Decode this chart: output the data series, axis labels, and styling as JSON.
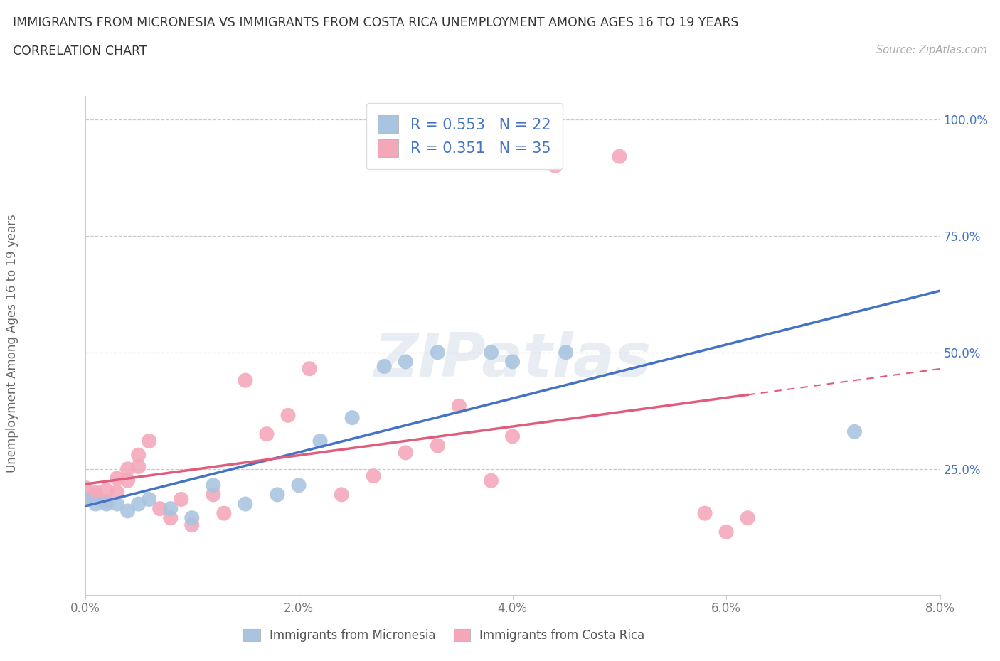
{
  "title_line1": "IMMIGRANTS FROM MICRONESIA VS IMMIGRANTS FROM COSTA RICA UNEMPLOYMENT AMONG AGES 16 TO 19 YEARS",
  "title_line2": "CORRELATION CHART",
  "source_text": "Source: ZipAtlas.com",
  "ylabel": "Unemployment Among Ages 16 to 19 years",
  "xlim": [
    0.0,
    0.08
  ],
  "ylim": [
    0.0,
    1.05
  ],
  "xtick_labels": [
    "0.0%",
    "2.0%",
    "4.0%",
    "6.0%",
    "8.0%"
  ],
  "xtick_values": [
    0.0,
    0.02,
    0.04,
    0.06,
    0.08
  ],
  "ytick_labels": [
    "25.0%",
    "50.0%",
    "75.0%",
    "100.0%"
  ],
  "ytick_values": [
    0.25,
    0.5,
    0.75,
    1.0
  ],
  "micronesia_color": "#a8c4e0",
  "costa_rica_color": "#f4a7b9",
  "micronesia_line_color": "#4472c4",
  "costa_rica_line_color": "#e05c7a",
  "R_micronesia": 0.553,
  "N_micronesia": 22,
  "R_costa_rica": 0.351,
  "N_costa_rica": 35,
  "micronesia_x": [
    0.0,
    0.001,
    0.002,
    0.003,
    0.004,
    0.005,
    0.006,
    0.008,
    0.01,
    0.012,
    0.015,
    0.018,
    0.02,
    0.022,
    0.025,
    0.028,
    0.03,
    0.033,
    0.038,
    0.04,
    0.045,
    0.072
  ],
  "micronesia_y": [
    0.185,
    0.175,
    0.175,
    0.175,
    0.16,
    0.175,
    0.185,
    0.165,
    0.145,
    0.215,
    0.175,
    0.195,
    0.215,
    0.31,
    0.36,
    0.47,
    0.48,
    0.5,
    0.5,
    0.48,
    0.5,
    0.33
  ],
  "costa_rica_x": [
    0.0,
    0.0,
    0.001,
    0.001,
    0.002,
    0.002,
    0.003,
    0.003,
    0.004,
    0.004,
    0.005,
    0.005,
    0.006,
    0.007,
    0.008,
    0.009,
    0.01,
    0.012,
    0.013,
    0.015,
    0.017,
    0.019,
    0.021,
    0.024,
    0.027,
    0.03,
    0.033,
    0.035,
    0.038,
    0.04,
    0.044,
    0.05,
    0.058,
    0.06,
    0.062
  ],
  "costa_rica_y": [
    0.21,
    0.185,
    0.2,
    0.195,
    0.205,
    0.18,
    0.2,
    0.23,
    0.25,
    0.225,
    0.28,
    0.255,
    0.31,
    0.165,
    0.145,
    0.185,
    0.13,
    0.195,
    0.155,
    0.44,
    0.325,
    0.365,
    0.465,
    0.195,
    0.235,
    0.285,
    0.3,
    0.385,
    0.225,
    0.32,
    0.9,
    0.92,
    0.155,
    0.115,
    0.145
  ],
  "watermark_text": "ZIPatlas",
  "background_color": "#ffffff",
  "grid_color": "#c8c8c8",
  "legend_label_micronesia": "Immigrants from Micronesia",
  "legend_label_costa_rica": "Immigrants from Costa Rica"
}
